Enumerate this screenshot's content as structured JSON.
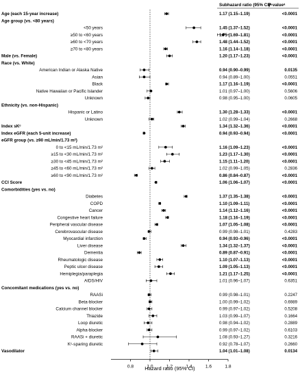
{
  "chart_data": {
    "type": "forest",
    "xlabel": "Hazard ratio  (95% CI)",
    "xlim": [
      0.6,
      1.8
    ],
    "xticks": [
      "0.8",
      "1.0",
      "1.2",
      "1.4",
      "1.6",
      "1.8"
    ],
    "reference_line": 1.0,
    "columns": [
      "Subhazard ratio (95% CI)ᵃ",
      "P-valueᵃ"
    ],
    "rows": [
      {
        "label": "Age (each 15-year increase)",
        "bold": true,
        "indent": 0,
        "hr": 1.17,
        "lo": 1.15,
        "hi": 1.19,
        "ci": "1.17 (1.15–1.19)",
        "p": "<0.0001",
        "bold_values": true
      },
      {
        "label": "Age group (vs. <80 years)",
        "bold": true,
        "indent": 0
      },
      {
        "label": "<50 years",
        "bold": false,
        "indent": 1,
        "hr": 1.45,
        "lo": 1.37,
        "hi": 1.52,
        "ci": "1.45 (1.37–1.52)",
        "p": "<0.0001",
        "bold_values": true
      },
      {
        "label": "≥50 to <60 years",
        "bold": false,
        "indent": 1,
        "hr": 1.75,
        "lo": 1.69,
        "hi": 1.81,
        "ci": "1.75 (1.69–1.81)",
        "p": "<0.0001",
        "bold_values": true
      },
      {
        "label": "≥60 to <70 years",
        "bold": false,
        "indent": 1,
        "hr": 1.48,
        "lo": 1.44,
        "hi": 1.52,
        "ci": "1.48 (1.44–1.52)",
        "p": "<0.0001",
        "bold_values": true
      },
      {
        "label": "≥70 to <80 years",
        "bold": false,
        "indent": 1,
        "hr": 1.16,
        "lo": 1.14,
        "hi": 1.18,
        "ci": "1.16 (1.14–1.18)",
        "p": "<0.0001",
        "bold_values": true
      },
      {
        "label": "Male (vs. Female)",
        "bold": true,
        "indent": 0,
        "hr": 1.2,
        "lo": 1.17,
        "hi": 1.23,
        "ci": "1.20 (1.17–1.23)",
        "p": "<0.0001",
        "bold_values": true
      },
      {
        "label": "Race (vs. White)",
        "bold": true,
        "indent": 0
      },
      {
        "label": "American Indian or Alaska Native",
        "bold": false,
        "indent": 1,
        "hr": 0.94,
        "lo": 0.9,
        "hi": 0.99,
        "ci": "0.94 (0.90–0.99)",
        "p": "0.0135",
        "bold_values": true
      },
      {
        "label": "Asian",
        "bold": false,
        "indent": 1,
        "hr": 0.94,
        "lo": 0.89,
        "hi": 1.0,
        "ci": "0.94 (0.89–1.00)",
        "p": "0.0551",
        "bold_values": false
      },
      {
        "label": "Black",
        "bold": false,
        "indent": 1,
        "hr": 1.17,
        "lo": 1.16,
        "hi": 1.19,
        "ci": "1.17 (1.16–1.19)",
        "p": "<0.0001",
        "bold_values": true
      },
      {
        "label": "Native Hawaiian or Pacific Islander",
        "bold": false,
        "indent": 1,
        "hr": 1.01,
        "lo": 0.97,
        "hi": 1.0,
        "ci": "1.01 (0.97–1.00)",
        "p": "0.5606",
        "bold_values": false
      },
      {
        "label": "Unknown",
        "bold": false,
        "indent": 1,
        "hr": 0.98,
        "lo": 0.95,
        "hi": 1.0,
        "ci": "0.98 (0.95–1.00)",
        "p": "0.0605",
        "bold_values": false
      },
      {
        "label": "Ethnicity (vs. non-Hispanic)",
        "bold": true,
        "indent": 0
      },
      {
        "label": "Hispanic or Latino",
        "bold": false,
        "indent": 1,
        "hr": 1.3,
        "lo": 1.28,
        "hi": 1.33,
        "ci": "1.30 (1.28–1.33)",
        "p": "<0.0001",
        "bold_values": true
      },
      {
        "label": "Unknown",
        "bold": false,
        "indent": 1,
        "hr": 1.02,
        "lo": 0.99,
        "hi": 1.04,
        "ci": "1.02 (0.99–1.04)",
        "p": "0.2668",
        "bold_values": false
      },
      {
        "label": "Index sKᶜ",
        "bold": true,
        "indent": 0,
        "hr": 1.34,
        "lo": 1.32,
        "hi": 1.36,
        "ci": "1.34 (1.32–1.36)",
        "p": "<0.0001",
        "bold_values": true
      },
      {
        "label": "Index eGFR (each 5-unit increase)",
        "bold": true,
        "indent": 0,
        "hr": 0.94,
        "lo": 0.93,
        "hi": 0.94,
        "ci": "0.94 (0.93–0.94)",
        "p": "<0.0001",
        "bold_values": true
      },
      {
        "label": "eGFR group (vs. ≥90 mL/min/1.73 m²)",
        "bold": true,
        "indent": 0
      },
      {
        "label": "0 to <15 mL/min/1.73 m²",
        "bold": false,
        "indent": 1,
        "hr": 1.16,
        "lo": 1.09,
        "hi": 1.23,
        "ci": "1.16 (1.09–1.23)",
        "p": "<0.0001",
        "bold_values": true
      },
      {
        "label": "≥15 to <30 mL/min/1.73 m²",
        "bold": false,
        "indent": 1,
        "hr": 1.23,
        "lo": 1.17,
        "hi": 1.3,
        "ci": "1.23 (1.17–1.30)",
        "p": "<0.0001",
        "bold_values": true
      },
      {
        "label": "≥30 to <45 mL/min/1.73 m²",
        "bold": false,
        "indent": 1,
        "hr": 1.15,
        "lo": 1.11,
        "hi": 1.2,
        "ci": "1.15 (1.11–1.20)",
        "p": "<0.0001",
        "bold_values": true
      },
      {
        "label": "≥45 to <60 mL/min/1.73 m²",
        "bold": false,
        "indent": 1,
        "hr": 1.02,
        "lo": 0.99,
        "hi": 1.05,
        "ci": "1.02 (0.99–1.05)",
        "p": "0.2836",
        "bold_values": false
      },
      {
        "label": "≥60 to <90 mL/min/1.73 m²",
        "bold": false,
        "indent": 1,
        "hr": 0.86,
        "lo": 0.84,
        "hi": 0.87,
        "ci": "0.86 (0.84–0.87)",
        "p": "<0.0001",
        "bold_values": true
      },
      {
        "label": "CCI Score",
        "bold": true,
        "indent": 0,
        "hr": 1.06,
        "lo": 1.06,
        "hi": 1.07,
        "ci": "1.06 (1.06–1.07)",
        "p": "<0.0001",
        "bold_values": true
      },
      {
        "label": "Comorbidities (yes vs. no)",
        "bold": true,
        "indent": 0
      },
      {
        "label": "Diabetes",
        "bold": false,
        "indent": 1,
        "hr": 1.37,
        "lo": 1.35,
        "hi": 1.38,
        "ci": "1.37 (1.35–1.38)",
        "p": "<0.0001",
        "bold_values": true
      },
      {
        "label": "COPD",
        "bold": false,
        "indent": 1,
        "hr": 1.1,
        "lo": 1.09,
        "hi": 1.11,
        "ci": "1.10 (1.09–1.11)",
        "p": "<0.0001",
        "bold_values": true
      },
      {
        "label": "Cancer",
        "bold": false,
        "indent": 1,
        "hr": 1.14,
        "lo": 1.12,
        "hi": 1.16,
        "ci": "1.14 (1.12–1.16)",
        "p": "<0.0001",
        "bold_values": true
      },
      {
        "label": "Congestive heart failure",
        "bold": false,
        "indent": 1,
        "hr": 1.18,
        "lo": 1.16,
        "hi": 1.19,
        "ci": "1.18 (1.16–1.19)",
        "p": "<0.0001",
        "bold_values": true
      },
      {
        "label": "Peripheral vascular disease",
        "bold": false,
        "indent": 1,
        "hr": 1.07,
        "lo": 1.05,
        "hi": 1.08,
        "ci": "1.07 (1.05–1.08)",
        "p": "<0.0001",
        "bold_values": true
      },
      {
        "label": "Cerebrovascular disease",
        "bold": false,
        "indent": 1,
        "hr": 0.99,
        "lo": 0.98,
        "hi": 1.01,
        "ci": "0.99 (0.98–1.01)",
        "p": "0.4283",
        "bold_values": false
      },
      {
        "label": "Myocardial infarction",
        "bold": false,
        "indent": 1,
        "hr": 0.94,
        "lo": 0.93,
        "hi": 0.96,
        "ci": "0.94 (0.93–0.96)",
        "p": "<0.0001",
        "bold_values": true
      },
      {
        "label": "Liver disease",
        "bold": false,
        "indent": 1,
        "hr": 1.34,
        "lo": 1.32,
        "hi": 1.37,
        "ci": "1.34 (1.32–1.37)",
        "p": "<0.0001",
        "bold_values": true
      },
      {
        "label": "Dementia",
        "bold": false,
        "indent": 1,
        "hr": 0.89,
        "lo": 0.87,
        "hi": 0.91,
        "ci": "0.89 (0.87–0.91)",
        "p": "<0.0001",
        "bold_values": true
      },
      {
        "label": "Rheumatologic disease",
        "bold": false,
        "indent": 1,
        "hr": 1.1,
        "lo": 1.07,
        "hi": 1.13,
        "ci": "1.10 (1.07–1.13)",
        "p": "<0.0001",
        "bold_values": true
      },
      {
        "label": "Peptic ulcer disease",
        "bold": false,
        "indent": 1,
        "hr": 1.09,
        "lo": 1.05,
        "hi": 1.13,
        "ci": "1.09 (1.05–1.13)",
        "p": "<0.0001",
        "bold_values": true
      },
      {
        "label": "Hemiplegia/paraplegia",
        "bold": false,
        "indent": 1,
        "hr": 1.21,
        "lo": 1.17,
        "hi": 1.25,
        "ci": "1.21 (1.17–1.25)",
        "p": "<0.0001",
        "bold_values": true
      },
      {
        "label": "AIDS/HIV",
        "bold": false,
        "indent": 1,
        "hr": 1.01,
        "lo": 0.96,
        "hi": 1.07,
        "ci": "1.01 (0.96–1.07)",
        "p": "0.6351",
        "bold_values": false
      },
      {
        "label": "Concomitant medications (yes vs. no)",
        "bold": true,
        "indent": 0
      },
      {
        "label": "RAASi",
        "bold": false,
        "indent": 1,
        "hr": 0.99,
        "lo": 0.98,
        "hi": 1.01,
        "ci": "0.99 (0.98–1.01)",
        "p": "0.2247",
        "bold_values": false
      },
      {
        "label": "Beta-blocker",
        "bold": false,
        "indent": 1,
        "hr": 1.0,
        "lo": 0.99,
        "hi": 1.02,
        "ci": "1.00 (0.99–1.02)",
        "p": "0.6989",
        "bold_values": false
      },
      {
        "label": "Calcium channel blocker",
        "bold": false,
        "indent": 1,
        "hr": 0.99,
        "lo": 0.97,
        "hi": 1.02,
        "ci": "0.99 (0.97–1.02)",
        "p": "0.5208",
        "bold_values": false
      },
      {
        "label": "Thiazide",
        "bold": false,
        "indent": 1,
        "hr": 1.03,
        "lo": 0.99,
        "hi": 1.07,
        "ci": "1.03 (0.99–1.07)",
        "p": "0.1664",
        "bold_values": false
      },
      {
        "label": "Loop diuretic",
        "bold": false,
        "indent": 1,
        "hr": 0.98,
        "lo": 0.94,
        "hi": 1.02,
        "ci": "0.98 (0.94–1.02)",
        "p": "0.2889",
        "bold_values": false
      },
      {
        "label": "Alpha-blocker",
        "bold": false,
        "indent": 1,
        "hr": 0.99,
        "lo": 0.97,
        "hi": 1.02,
        "ci": "0.99 (0.97–1.02)",
        "p": "0.6103",
        "bold_values": false
      },
      {
        "label": "RAASi + diuretic",
        "bold": false,
        "indent": 1,
        "hr": 1.08,
        "lo": 0.93,
        "hi": 1.27,
        "ci": "1.08 (0.93–1.27)",
        "p": "0.3216",
        "bold_values": false
      },
      {
        "label": "Kᶜ-sparing diuretic",
        "bold": false,
        "indent": 1,
        "hr": 0.92,
        "lo": 0.78,
        "hi": 1.07,
        "ci": "0.92 (0.78–1.07)",
        "p": "0.2660",
        "bold_values": false
      },
      {
        "label": "Vasodilator",
        "bold": true,
        "indent": 0,
        "hr": 1.04,
        "lo": 1.01,
        "hi": 1.08,
        "ci": "1.04 (1.01–1.08)",
        "p": "0.0134",
        "bold_values": true
      }
    ]
  }
}
